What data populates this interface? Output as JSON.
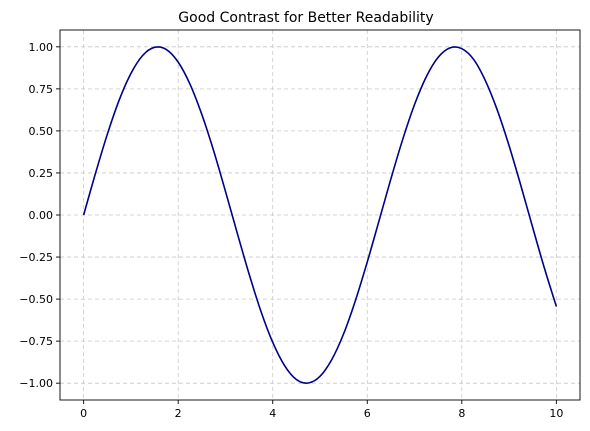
{
  "chart_data": {
    "type": "line",
    "title": "Good Contrast for Better Readability",
    "xlabel": "",
    "ylabel": "",
    "xlim": [
      -0.5,
      10.5
    ],
    "ylim": [
      -1.1,
      1.1
    ],
    "xticks": [
      0,
      2,
      4,
      6,
      8,
      10
    ],
    "xtick_labels": [
      "0",
      "2",
      "4",
      "6",
      "8",
      "10"
    ],
    "yticks": [
      1.0,
      0.75,
      0.5,
      0.25,
      0.0,
      -0.25,
      -0.5,
      -0.75,
      -1.0
    ],
    "ytick_labels": [
      "1.00",
      "0.75",
      "0.50",
      "0.25",
      "0.00",
      "−0.25",
      "−0.50",
      "−0.75",
      "−1.00"
    ],
    "grid": true,
    "series": [
      {
        "color": "#00008b",
        "x": [
          0,
          0.25,
          0.5,
          0.75,
          1,
          1.25,
          1.5,
          1.75,
          2,
          2.25,
          2.5,
          2.75,
          3,
          3.25,
          3.5,
          3.75,
          4,
          4.25,
          4.5,
          4.75,
          5,
          5.25,
          5.5,
          5.75,
          6,
          6.25,
          6.5,
          6.75,
          7,
          7.25,
          7.5,
          7.75,
          8,
          8.25,
          8.5,
          8.75,
          9,
          9.25,
          9.5,
          9.75,
          10
        ],
        "y": [
          0,
          0.247,
          0.479,
          0.682,
          0.841,
          0.949,
          0.997,
          0.984,
          0.909,
          0.778,
          0.598,
          0.382,
          0.141,
          -0.108,
          -0.351,
          -0.572,
          -0.757,
          -0.895,
          -0.978,
          -0.999,
          -0.959,
          -0.859,
          -0.706,
          -0.508,
          -0.279,
          -0.033,
          0.215,
          0.45,
          0.657,
          0.823,
          0.938,
          0.994,
          0.989,
          0.925,
          0.798,
          0.624,
          0.412,
          0.174,
          -0.075,
          -0.319,
          -0.544
        ]
      }
    ]
  }
}
